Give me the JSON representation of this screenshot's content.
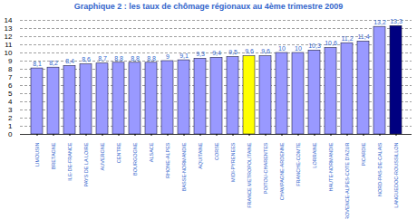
{
  "chart_data": {
    "type": "bar",
    "title": "Graphique 2 : les taux de chômage régionaux au 4ème trimestre 2009",
    "categories": [
      "LIMOUSIN",
      "BRETAGNE",
      "ILE-DE-FRANCE",
      "PAYS DE LA LOIRE",
      "AUVERGNE",
      "CENTRE",
      "BOURGOGNE",
      "ALSACE",
      "RHONE-ALPES",
      "BASSE-NORMANDIE",
      "AQUITAINE",
      "CORSE",
      "MIDI-PYRENEES",
      "FRANCE METROPOLITAINE",
      "POITOU-CHARENTES",
      "CHAMPAGNE-ARDENNE",
      "FRANCHE-COMTE",
      "LORRAINE",
      "HAUTE-NORMANDIE",
      "PROVENCE-ALPES-COTE D'AZUR",
      "PICARDIE",
      "NORD-PAS-DE-CALAIS",
      "LANGUEDOC-ROUSSILLON"
    ],
    "values": [
      8.1,
      8.2,
      8.4,
      8.6,
      8.7,
      8.8,
      8.8,
      8.8,
      9,
      9.1,
      9.3,
      9.4,
      9.5,
      9.6,
      9.6,
      10,
      10,
      10.3,
      10.6,
      11.2,
      11.4,
      13.2,
      13.3
    ],
    "value_labels": [
      "8,1",
      "8,2",
      "8,4",
      "8,6",
      "8,7",
      "8,8",
      "8,8",
      "8,8",
      "9",
      "9,1",
      "9,3",
      "9,4",
      "9,5",
      "9,6",
      "9,6",
      "10",
      "10",
      "10,3",
      "10,6",
      "11,2",
      "11,4",
      "13,2",
      "13,3"
    ],
    "colors": [
      "#9999ff",
      "#9999ff",
      "#9999ff",
      "#9999ff",
      "#9999ff",
      "#9999ff",
      "#9999ff",
      "#9999ff",
      "#9999ff",
      "#9999ff",
      "#9999ff",
      "#9999ff",
      "#9999ff",
      "#ffff00",
      "#9999ff",
      "#9999ff",
      "#9999ff",
      "#9999ff",
      "#9999ff",
      "#9999ff",
      "#9999ff",
      "#9999ff",
      "#000080"
    ],
    "ylim": [
      0,
      14
    ],
    "yticks": [
      0,
      1,
      2,
      3,
      4,
      5,
      6,
      7,
      8,
      9,
      10,
      11,
      12,
      13,
      14
    ],
    "grid": true,
    "data_labels": true
  }
}
